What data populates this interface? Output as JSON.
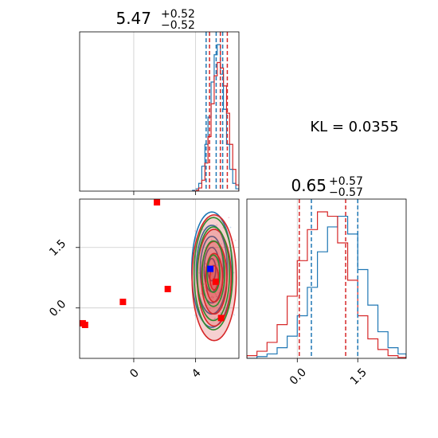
{
  "chart_data": [
    {
      "type": "histogram",
      "panel": "marginal-x",
      "title_main": "5.47",
      "title_sup": "+0.52",
      "title_sub": "−0.52",
      "xlim": [
        -3.5,
        6.8
      ],
      "grid": true,
      "bins": [
        3.8,
        4.0,
        4.2,
        4.4,
        4.6,
        4.8,
        5.0,
        5.2,
        5.4,
        5.6,
        5.8,
        6.0,
        6.2,
        6.4,
        6.6,
        6.8
      ],
      "series": [
        {
          "color": "#1f77b4",
          "counts": [
            1,
            3,
            10,
            32,
            60,
            95,
            140,
            175,
            188,
            150,
            105,
            60,
            28,
            10,
            3
          ]
        },
        {
          "color": "#d62728",
          "counts": [
            0,
            1,
            4,
            14,
            36,
            70,
            112,
            148,
            165,
            158,
            135,
            100,
            60,
            28,
            8
          ]
        }
      ],
      "quantile_lines": [
        {
          "color": "#1f77b4",
          "values": [
            4.68,
            5.33,
            5.75
          ]
        },
        {
          "color": "#d62728",
          "values": [
            4.9,
            5.6,
            6.05
          ]
        }
      ]
    },
    {
      "type": "histogram",
      "panel": "marginal-y",
      "title_main": "0.65",
      "title_sup": "+0.57",
      "title_sub": "−0.57",
      "xlim": [
        -1.25,
        2.7
      ],
      "xticks": [
        0.0,
        1.5
      ],
      "xticklabels": [
        "0.0",
        "1.5"
      ],
      "grid": true,
      "bins": [
        -1.25,
        -1.0,
        -0.75,
        -0.5,
        -0.25,
        0.0,
        0.25,
        0.5,
        0.75,
        1.0,
        1.25,
        1.5,
        1.75,
        2.0,
        2.25,
        2.5,
        2.7
      ],
      "series": [
        {
          "color": "#1f77b4",
          "counts": [
            0,
            2,
            5,
            12,
            25,
            48,
            80,
            120,
            148,
            160,
            140,
            100,
            60,
            30,
            12,
            5
          ]
        },
        {
          "color": "#d62728",
          "counts": [
            3,
            8,
            18,
            38,
            70,
            110,
            145,
            165,
            160,
            130,
            88,
            48,
            22,
            10,
            3,
            1
          ]
        }
      ],
      "quantile_lines": [
        {
          "color": "#1f77b4",
          "values": [
            0.35,
            1.5
          ]
        },
        {
          "color": "#d62728",
          "values": [
            0.05,
            1.2
          ]
        }
      ]
    },
    {
      "type": "scatter",
      "panel": "joint",
      "xlim": [
        -3.5,
        6.8
      ],
      "ylim": [
        -1.25,
        2.7
      ],
      "xticks": [
        0,
        4
      ],
      "xticklabels": [
        "0",
        "4"
      ],
      "yticks": [
        0.0,
        1.5
      ],
      "yticklabels": [
        "0.0",
        "1.5"
      ],
      "grid": true,
      "contours": [
        {
          "color": "#1f77b4",
          "center": [
            5.05,
            0.95
          ],
          "sx": 0.5,
          "sy": 0.55,
          "levels": [
            0.5,
            1.0,
            1.5,
            2.0,
            2.6
          ]
        },
        {
          "color": "#d62728",
          "center": [
            5.2,
            0.75
          ],
          "sx": 0.55,
          "sy": 0.6,
          "levels": [
            0.5,
            1.0,
            1.5,
            2.0,
            2.6
          ],
          "filled": true
        },
        {
          "color": "#2e8b2e",
          "center": [
            5.15,
            0.85
          ],
          "sx": 0.52,
          "sy": 0.58,
          "levels": [
            0.8,
            1.4,
            2.0,
            2.4
          ]
        }
      ],
      "red_points": [
        [
          -3.3,
          -0.38
        ],
        [
          -3.15,
          -0.42
        ],
        [
          -0.7,
          0.15
        ],
        [
          1.5,
          2.62
        ],
        [
          2.2,
          0.47
        ],
        [
          5.3,
          0.65
        ],
        [
          5.65,
          -0.25
        ]
      ],
      "blue_points": [
        [
          4.95,
          0.97
        ]
      ]
    }
  ],
  "annotation": {
    "kl_text": "KL = 0.0355"
  }
}
